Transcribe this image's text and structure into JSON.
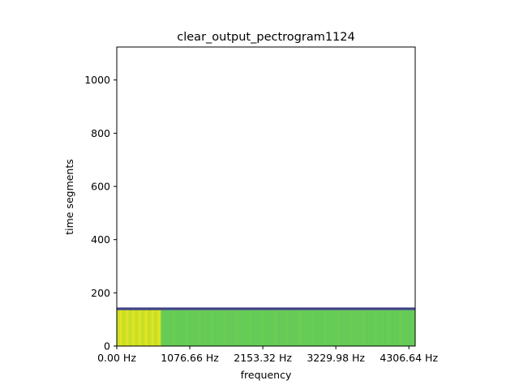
{
  "chart_data": {
    "type": "heatmap",
    "title": "clear_output_pectrogram1124",
    "xlabel": "frequency",
    "ylabel": "time segments",
    "x_tick_labels": [
      "0.00 Hz",
      "1076.66 Hz",
      "2153.32 Hz",
      "3229.98 Hz",
      "4306.64 Hz"
    ],
    "x_tick_values": [
      0.0,
      1076.66,
      2153.32,
      3229.98,
      4306.64
    ],
    "y_tick_labels": [
      "0",
      "200",
      "400",
      "600",
      "800",
      "1000"
    ],
    "y_tick_values": [
      0,
      200,
      400,
      600,
      800,
      1000
    ],
    "xlim": [
      0,
      4400
    ],
    "ylim": [
      0,
      1124
    ],
    "filled_time_segments": [
      0,
      145
    ],
    "boundary_band_time_segments": [
      135,
      145
    ],
    "bright_frequency_region_hz": [
      0,
      650
    ],
    "grid": false,
    "colormap": "viridis",
    "colors": {
      "body": "#66cc55",
      "bright": "#cfe124",
      "boundary": "#414487",
      "empty": "#ffffff"
    }
  }
}
